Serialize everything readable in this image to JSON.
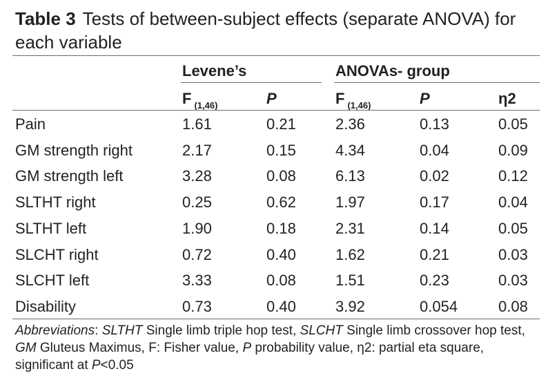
{
  "caption": {
    "label": "Table 3",
    "title": "Tests of between-subject effects (separate ANOVA) for each variable"
  },
  "groups": {
    "levene": "Levene’s",
    "anova": "ANOVAs- group"
  },
  "columns": {
    "f_levene": "F",
    "f_levene_sub": "(1,46)",
    "p_levene": "P",
    "f_anova": "F",
    "f_anova_sub": "(1,46)",
    "p_anova": "P",
    "eta": "η2"
  },
  "rows": [
    {
      "variable": "Pain",
      "lev_f": "1.61",
      "lev_p": "0.21",
      "an_f": "2.36",
      "an_p": "0.13",
      "eta": "0.05"
    },
    {
      "variable": "GM strength right",
      "lev_f": "2.17",
      "lev_p": "0.15",
      "an_f": "4.34",
      "an_p": "0.04",
      "eta": "0.09"
    },
    {
      "variable": "GM strength left",
      "lev_f": "3.28",
      "lev_p": "0.08",
      "an_f": "6.13",
      "an_p": "0.02",
      "eta": "0.12"
    },
    {
      "variable": "SLTHT right",
      "lev_f": "0.25",
      "lev_p": "0.62",
      "an_f": "1.97",
      "an_p": "0.17",
      "eta": "0.04"
    },
    {
      "variable": "SLTHT left",
      "lev_f": "1.90",
      "lev_p": "0.18",
      "an_f": "2.31",
      "an_p": "0.14",
      "eta": "0.05"
    },
    {
      "variable": "SLCHT right",
      "lev_f": "0.72",
      "lev_p": "0.40",
      "an_f": "1.62",
      "an_p": "0.21",
      "eta": "0.03"
    },
    {
      "variable": "SLCHT left",
      "lev_f": "3.33",
      "lev_p": "0.08",
      "an_f": "1.51",
      "an_p": "0.23",
      "eta": "0.03"
    },
    {
      "variable": "Disability",
      "lev_f": "0.73",
      "lev_p": "0.40",
      "an_f": "3.92",
      "an_p": "0.054",
      "eta": "0.08"
    }
  ],
  "footnote": [
    {
      "text": "Abbreviations",
      "italic": true
    },
    {
      "text": ": ",
      "italic": false
    },
    {
      "text": "SLTHT",
      "italic": true
    },
    {
      "text": " Single limb triple hop test, ",
      "italic": false
    },
    {
      "text": "SLCHT",
      "italic": true
    },
    {
      "text": " Single limb crossover hop test, ",
      "italic": false
    },
    {
      "text": "GM",
      "italic": true
    },
    {
      "text": " Gluteus Maximus, F: Fisher value, ",
      "italic": false
    },
    {
      "text": "P",
      "italic": true
    },
    {
      "text": " probability value, η2: partial eta square, significant at ",
      "italic": false
    },
    {
      "text": "P",
      "italic": true
    },
    {
      "text": "<0.05",
      "italic": false
    }
  ]
}
